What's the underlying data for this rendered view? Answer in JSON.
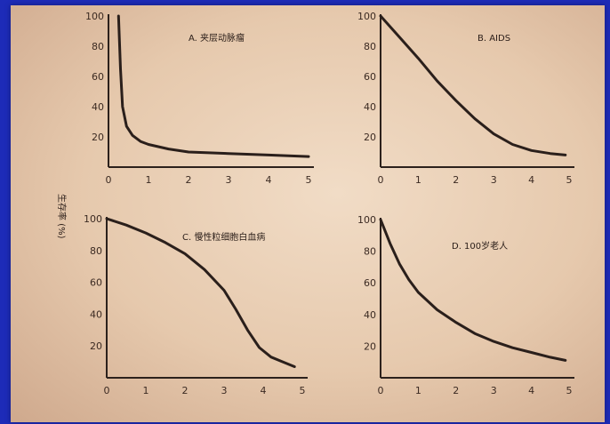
{
  "colors": {
    "slide_bg": "#1d2bb8",
    "paper": "#ecd4bc",
    "ink": "#2a1f1b"
  },
  "y_axis_label": "生存率 (%)",
  "chart_data": [
    {
      "type": "line",
      "title": "A. 夹层动脉瘤",
      "x_ticks": [
        "0",
        "1",
        "2",
        "3",
        "4",
        "5"
      ],
      "y_ticks": [
        "20",
        "40",
        "60",
        "80",
        "100"
      ],
      "xlim": [
        0,
        5
      ],
      "ylim": [
        0,
        100
      ],
      "series": [
        {
          "x": [
            0.25,
            0.3,
            0.35,
            0.45,
            0.6,
            0.8,
            1.0,
            1.5,
            2,
            3,
            4,
            5
          ],
          "y": [
            100,
            65,
            40,
            27,
            21,
            17,
            15,
            12,
            10,
            9,
            8,
            7
          ]
        }
      ]
    },
    {
      "type": "line",
      "title": "B. AIDS",
      "x_ticks": [
        "0",
        "1",
        "2",
        "3",
        "4",
        "5"
      ],
      "y_ticks": [
        "20",
        "40",
        "60",
        "80",
        "100"
      ],
      "xlim": [
        0,
        5
      ],
      "ylim": [
        0,
        100
      ],
      "series": [
        {
          "x": [
            0,
            0.5,
            1,
            1.5,
            2,
            2.5,
            3,
            3.5,
            4,
            4.5,
            4.9
          ],
          "y": [
            100,
            86,
            72,
            57,
            44,
            32,
            22,
            15,
            11,
            9,
            8
          ]
        }
      ]
    },
    {
      "type": "line",
      "title": "C. 慢性粒细胞白血病",
      "x_ticks": [
        "0",
        "1",
        "2",
        "3",
        "4",
        "5"
      ],
      "y_ticks": [
        "20",
        "40",
        "60",
        "80",
        "100"
      ],
      "xlim": [
        0,
        5
      ],
      "ylim": [
        0,
        100
      ],
      "series": [
        {
          "x": [
            0,
            0.5,
            1,
            1.5,
            2,
            2.5,
            3,
            3.3,
            3.6,
            3.9,
            4.2,
            4.5,
            4.8
          ],
          "y": [
            100,
            96,
            91,
            85,
            78,
            68,
            55,
            43,
            30,
            19,
            13,
            10,
            7
          ]
        }
      ]
    },
    {
      "type": "line",
      "title": "D. 100岁老人",
      "x_ticks": [
        "0",
        "1",
        "2",
        "3",
        "4",
        "5"
      ],
      "y_ticks": [
        "20",
        "40",
        "60",
        "80",
        "100"
      ],
      "xlim": [
        0,
        5
      ],
      "ylim": [
        0,
        100
      ],
      "series": [
        {
          "x": [
            0,
            0.25,
            0.5,
            0.75,
            1,
            1.5,
            2,
            2.5,
            3,
            3.5,
            4,
            4.5,
            4.9
          ],
          "y": [
            100,
            85,
            72,
            62,
            54,
            43,
            35,
            28,
            23,
            19,
            16,
            13,
            11
          ]
        }
      ]
    }
  ]
}
